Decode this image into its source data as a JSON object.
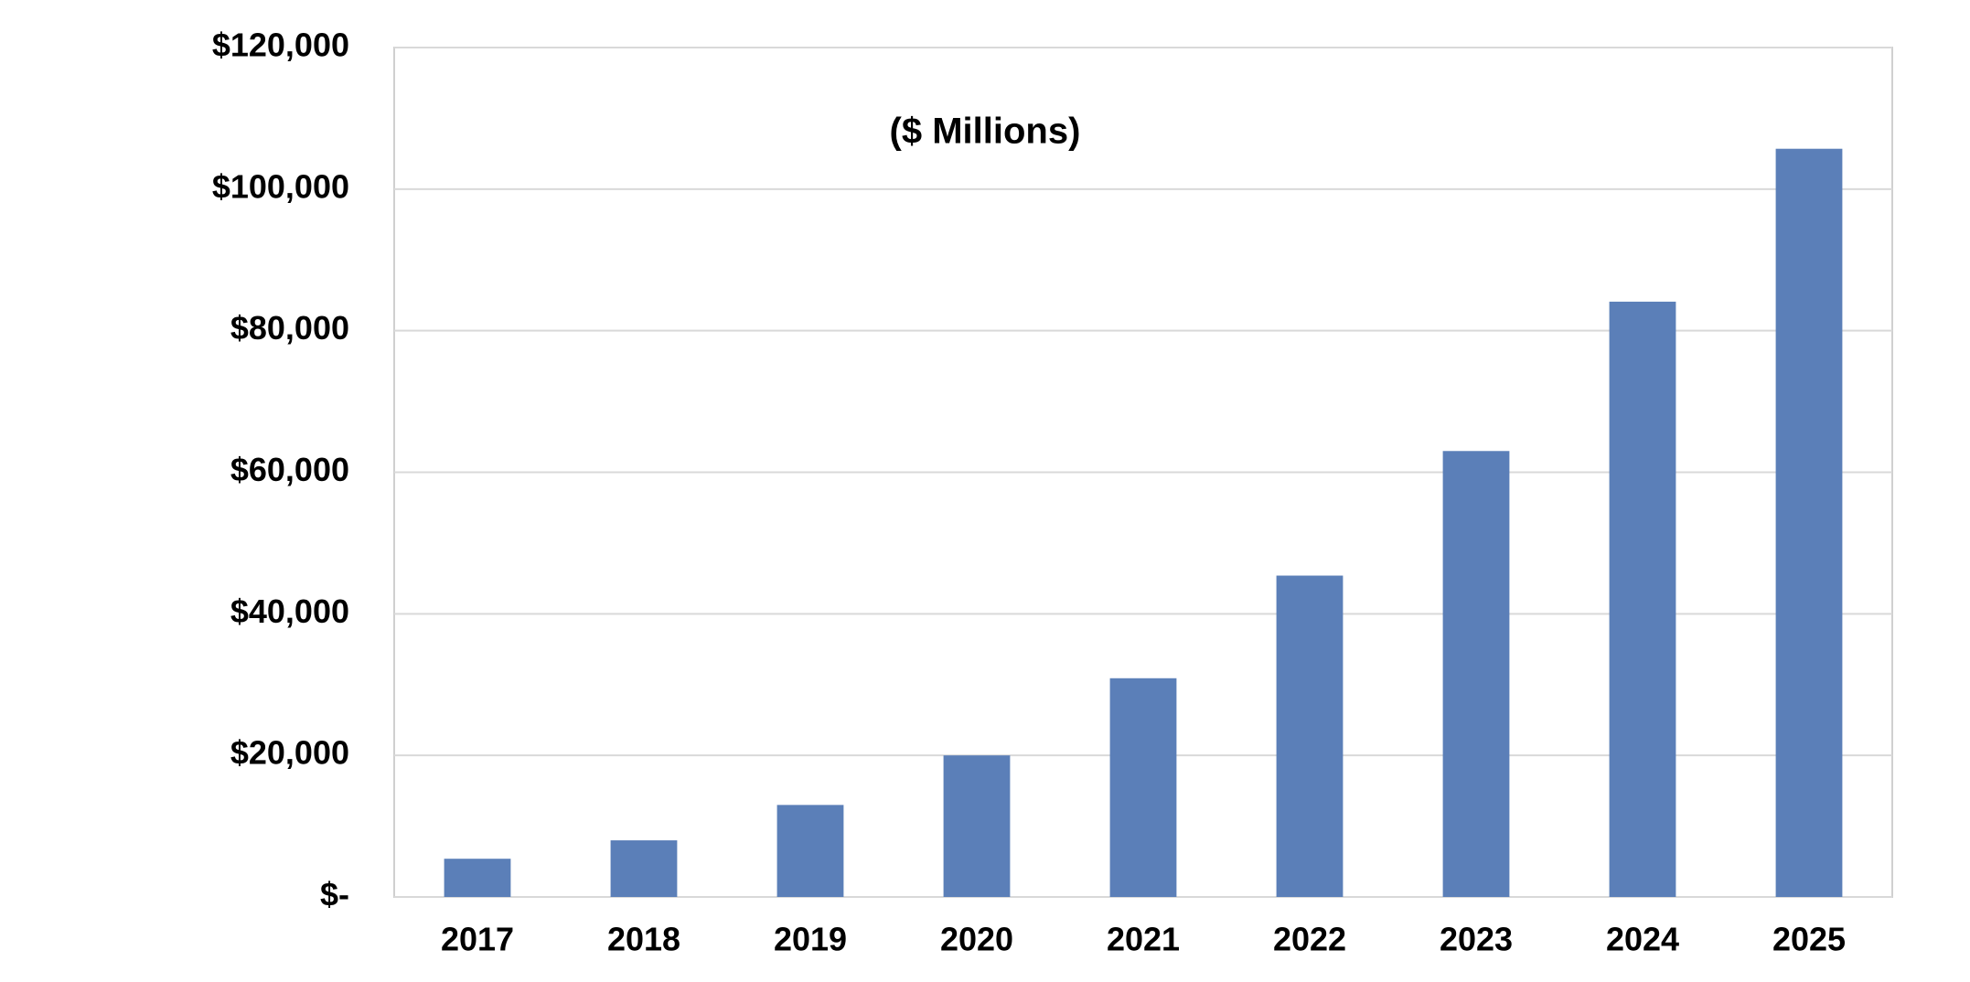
{
  "chart_data": {
    "type": "bar",
    "annotation": "($ Millions)",
    "categories": [
      "2017",
      "2018",
      "2019",
      "2020",
      "2021",
      "2022",
      "2023",
      "2024",
      "2025"
    ],
    "values": [
      5400,
      8000,
      13000,
      20000,
      30900,
      45400,
      63000,
      84100,
      105700
    ],
    "color": "#5b7fb8",
    "ylim": [
      0,
      120000
    ],
    "yticks": [
      {
        "value": 0,
        "label": "$-"
      },
      {
        "value": 20000,
        "label": "$20,000"
      },
      {
        "value": 40000,
        "label": "$40,000"
      },
      {
        "value": 60000,
        "label": "$60,000"
      },
      {
        "value": 80000,
        "label": "$80,000"
      },
      {
        "value": 100000,
        "label": "$100,000"
      },
      {
        "value": 120000,
        "label": "$120,000"
      }
    ],
    "grid": true
  }
}
